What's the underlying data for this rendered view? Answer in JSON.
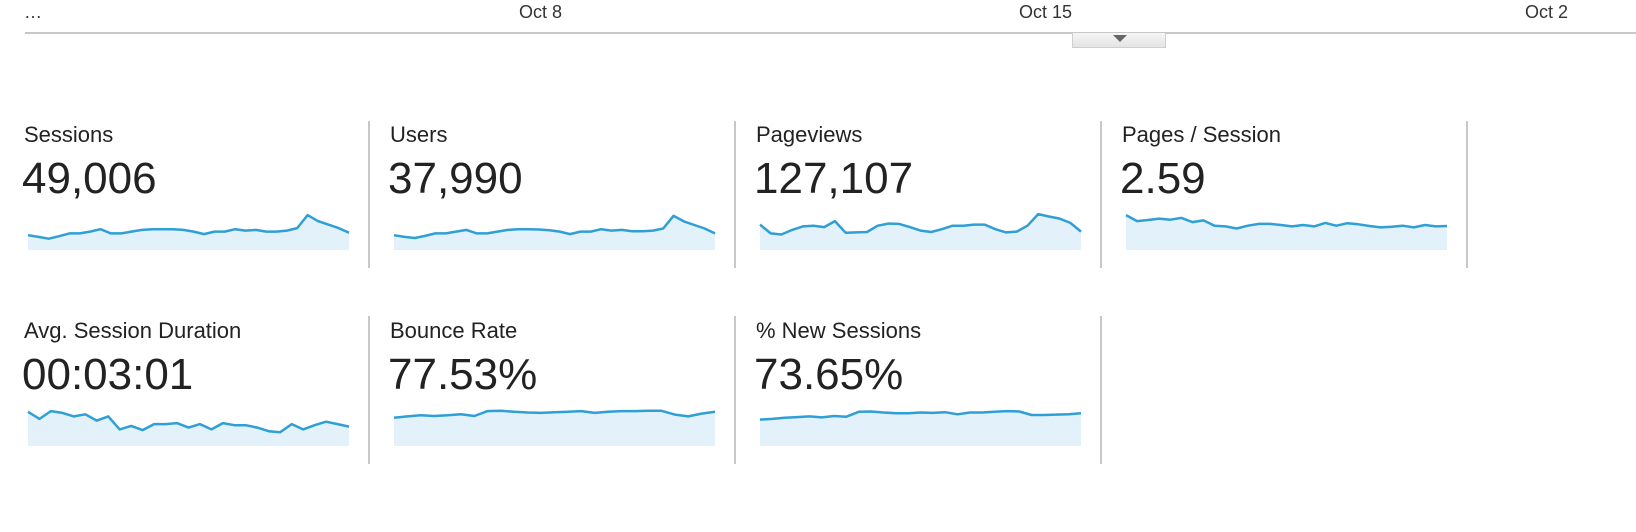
{
  "timeline": {
    "labels": [
      "…",
      "Oct 8",
      "Oct 15",
      "Oct 2"
    ],
    "expand_icon": "triangle-down-icon"
  },
  "colors": {
    "line": "#2f9fd6",
    "fill": "#e3f1fa",
    "divider": "#c8c8c8"
  },
  "metrics": [
    {
      "label": "Sessions",
      "value": "49,006",
      "trend": [
        45,
        40,
        35,
        42,
        50,
        50,
        55,
        62,
        50,
        50,
        55,
        60,
        62,
        62,
        62,
        60,
        55,
        48,
        55,
        55,
        62,
        58,
        60,
        55,
        55,
        58,
        65,
        102,
        85,
        75,
        65,
        52
      ]
    },
    {
      "label": "Users",
      "value": "37,990",
      "trend": [
        45,
        40,
        37,
        43,
        50,
        50,
        55,
        60,
        50,
        50,
        55,
        60,
        62,
        62,
        61,
        59,
        55,
        48,
        55,
        55,
        62,
        58,
        60,
        56,
        56,
        58,
        64,
        100,
        84,
        74,
        64,
        50
      ]
    },
    {
      "label": "Pageviews",
      "value": "127,107",
      "trend": [
        75,
        50,
        47,
        60,
        70,
        72,
        68,
        85,
        52,
        53,
        54,
        72,
        78,
        77,
        68,
        58,
        54,
        62,
        72,
        72,
        75,
        75,
        62,
        53,
        55,
        72,
        105,
        98,
        92,
        80,
        55
      ]
    },
    {
      "label": "Pages / Session",
      "value": "2.59",
      "trend": [
        102,
        85,
        88,
        92,
        89,
        94,
        82,
        87,
        72,
        70,
        64,
        72,
        77,
        77,
        74,
        70,
        74,
        70,
        80,
        72,
        79,
        76,
        71,
        67,
        69,
        72,
        67,
        74,
        70,
        71
      ]
    },
    {
      "label": "Avg. Session Duration",
      "value": "00:03:01",
      "trend": [
        100,
        80,
        102,
        97,
        87,
        93,
        75,
        87,
        50,
        60,
        48,
        65,
        65,
        68,
        55,
        65,
        50,
        68,
        62,
        62,
        55,
        45,
        42,
        65,
        50,
        62,
        72,
        65,
        58
      ]
    },
    {
      "label": "Bounce Rate",
      "value": "77.53%",
      "trend": [
        83,
        87,
        90,
        88,
        90,
        93,
        88,
        102,
        103,
        100,
        98,
        97,
        99,
        100,
        102,
        97,
        100,
        102,
        102,
        103,
        103,
        92,
        87,
        95,
        100
      ]
    },
    {
      "label": "% New Sessions",
      "value": "73.65%",
      "trend": [
        78,
        80,
        83,
        85,
        87,
        84,
        88,
        86,
        100,
        101,
        98,
        96,
        96,
        98,
        97,
        99,
        93,
        98,
        98,
        100,
        102,
        101,
        91,
        91,
        92,
        93,
        96
      ]
    }
  ]
}
